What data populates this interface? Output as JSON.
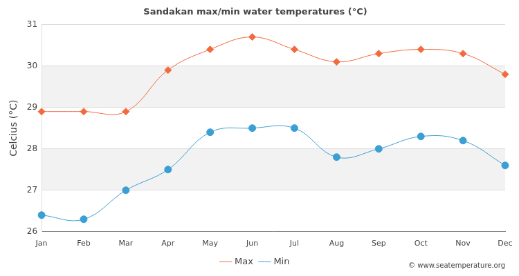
{
  "chart_data": {
    "type": "line",
    "title": "Sandakan max/min water temperatures (°C)",
    "y_label": "Celcius (°C)",
    "categories": [
      "Jan",
      "Feb",
      "Mar",
      "Apr",
      "May",
      "Jun",
      "Jul",
      "Aug",
      "Sep",
      "Oct",
      "Nov",
      "Dec"
    ],
    "series": [
      {
        "name": "Max",
        "color": "#f26a3d",
        "marker": "diamond",
        "values": [
          28.9,
          28.9,
          28.9,
          29.9,
          30.4,
          30.7,
          30.4,
          30.1,
          30.3,
          30.4,
          30.3,
          29.8
        ]
      },
      {
        "name": "Min",
        "color": "#3b9fd4",
        "marker": "circle",
        "values": [
          26.4,
          26.3,
          27.0,
          27.5,
          28.4,
          28.5,
          28.5,
          27.8,
          28.0,
          28.3,
          28.2,
          27.6
        ]
      }
    ],
    "ylim": [
      26,
      31
    ],
    "yticks": [
      26,
      27,
      28,
      29,
      30,
      31
    ],
    "grid": true,
    "legend": "bottom",
    "annotations": [
      "© www.seatemperature.org"
    ]
  }
}
